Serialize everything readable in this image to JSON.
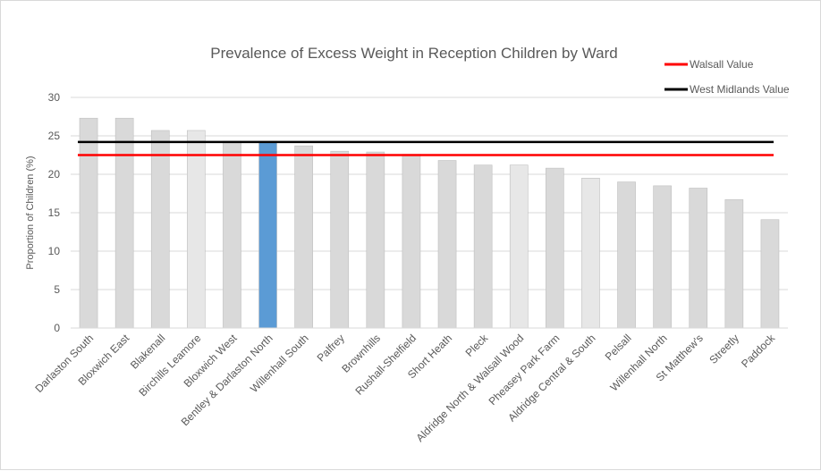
{
  "chart_data": {
    "type": "bar",
    "title": "Prevalence of Excess Weight in Reception Children by Ward",
    "ylabel": "Proportion of Children (%)",
    "xlabel": "",
    "ylim": [
      0,
      30
    ],
    "yticks": [
      0,
      5,
      10,
      15,
      20,
      25,
      30
    ],
    "categories": [
      "Darlaston South",
      "Bloxwich East",
      "Blakenall",
      "Birchills Leamore",
      "Bloxwich West",
      "Bentley & Darlaston North",
      "Willenhall South",
      "Palfrey",
      "Brownhills",
      "Rushall-Shelfield",
      "Short Heath",
      "Pleck",
      "Aldridge North & Walsall Wood",
      "Pheasey Park Farm",
      "Aldridge Central & South",
      "Pelsall",
      "Willenhall North",
      "St Matthew's",
      "Streetly",
      "Paddock"
    ],
    "values": [
      27.3,
      27.3,
      25.7,
      25.7,
      24.3,
      24.3,
      23.7,
      23.0,
      22.9,
      22.6,
      21.8,
      21.2,
      21.2,
      20.8,
      19.5,
      19.0,
      18.5,
      18.2,
      16.7,
      14.1
    ],
    "bar_colors": [
      "#d9d9d9",
      "#d9d9d9",
      "#d9d9d9",
      "#e7e7e7",
      "#d9d9d9",
      "#5b9bd5",
      "#d9d9d9",
      "#d9d9d9",
      "#d9d9d9",
      "#d9d9d9",
      "#d9d9d9",
      "#d9d9d9",
      "#e7e7e7",
      "#d9d9d9",
      "#e7e7e7",
      "#d9d9d9",
      "#d9d9d9",
      "#d9d9d9",
      "#d9d9d9",
      "#d9d9d9"
    ],
    "reference_lines": [
      {
        "name": "Walsall Value",
        "value": 22.5,
        "color": "#ff0000"
      },
      {
        "name": "West Midlands Value",
        "value": 24.2,
        "color": "#000000"
      }
    ],
    "grid": true,
    "legend_position": "top-right"
  }
}
